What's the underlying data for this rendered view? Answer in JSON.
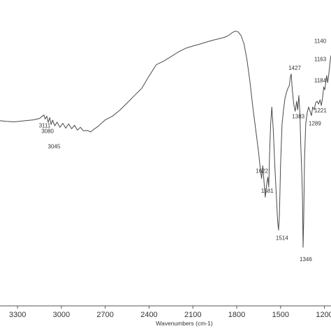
{
  "chart_data": {
    "type": "line",
    "title": "",
    "xlabel": "Wavenumbers (cm-1)",
    "ylabel": "",
    "x_reversed": true,
    "xlim": [
      3420,
      1155
    ],
    "ylim": [
      0,
      100
    ],
    "x_ticks": [
      3300,
      3000,
      2700,
      2400,
      2100,
      1800,
      1500,
      1200
    ],
    "x_tick_labels": [
      "3300",
      "3000",
      "2700",
      "2400",
      "2100",
      "1800",
      "1500",
      "1200"
    ],
    "grid": false,
    "legend": "none",
    "line_color": "#4a4a4a",
    "series": [
      {
        "x": [
          3420,
          3380,
          3320,
          3250,
          3190,
          3150,
          3120,
          3111,
          3100,
          3090,
          3080,
          3070,
          3060,
          3045,
          3030,
          3010,
          2990,
          2970,
          2950,
          2930,
          2910,
          2890,
          2870,
          2850,
          2820,
          2800,
          2780,
          2750,
          2700,
          2650,
          2600,
          2550,
          2500,
          2450,
          2400,
          2350,
          2300,
          2250,
          2200,
          2150,
          2100,
          2050,
          2000,
          1950,
          1900,
          1870,
          1850,
          1830,
          1810,
          1790,
          1770,
          1750,
          1730,
          1710,
          1690,
          1670,
          1650,
          1640,
          1630,
          1622,
          1615,
          1605,
          1595,
          1587,
          1581,
          1575,
          1568,
          1560,
          1550,
          1540,
          1530,
          1520,
          1514,
          1508,
          1500,
          1490,
          1480,
          1470,
          1460,
          1450,
          1440,
          1433,
          1427,
          1420,
          1410,
          1400,
          1390,
          1383,
          1375,
          1368,
          1362,
          1355,
          1350,
          1346,
          1342,
          1336,
          1328,
          1318,
          1308,
          1298,
          1289,
          1280,
          1270,
          1260,
          1250,
          1240,
          1230,
          1221,
          1212,
          1205,
          1198,
          1192,
          1184,
          1178,
          1172,
          1163,
          1158,
          1155
        ],
        "y": [
          63.2,
          63.0,
          62.8,
          63.2,
          63.5,
          64.0,
          65.2,
          63.8,
          64.8,
          62.6,
          64.3,
          61.9,
          63.4,
          61.4,
          62.7,
          60.9,
          62.3,
          60.6,
          62.1,
          60.4,
          61.6,
          59.9,
          60.9,
          59.7,
          59.8,
          59.3,
          60.1,
          61.2,
          63.5,
          64.8,
          66.9,
          69.4,
          72.0,
          74.5,
          78.8,
          82.8,
          84.0,
          85.6,
          87.2,
          88.5,
          89.3,
          90.0,
          90.8,
          91.5,
          92.1,
          92.6,
          93.2,
          94.0,
          94.5,
          94.2,
          92.9,
          90.0,
          84.5,
          77.0,
          68.0,
          60.0,
          52.0,
          47.0,
          43.0,
          47.5,
          43.0,
          36.5,
          41.0,
          43.5,
          40.0,
          52.0,
          62.0,
          68.0,
          60.0,
          48.0,
          38.0,
          28.0,
          25.0,
          30.0,
          48.0,
          62.0,
          67.0,
          71.0,
          73.0,
          74.5,
          75.5,
          78.5,
          79.5,
          74.0,
          69.0,
          66.5,
          70.0,
          67.0,
          72.0,
          66.0,
          55.0,
          45.0,
          36.0,
          19.0,
          28.0,
          50.0,
          62.0,
          66.0,
          68.0,
          66.5,
          65.0,
          68.0,
          67.0,
          69.5,
          70.0,
          69.0,
          70.5,
          68.5,
          71.5,
          75.0,
          74.0,
          76.0,
          79.0,
          76.5,
          78.5,
          83.0,
          85.0,
          86.0
        ]
      }
    ],
    "peak_labels": [
      {
        "text": "3111",
        "x": 3111
      },
      {
        "text": "3080",
        "x": 3080
      },
      {
        "text": "3045",
        "x": 3045
      },
      {
        "text": "1622",
        "x": 1622
      },
      {
        "text": "1581",
        "x": 1581
      },
      {
        "text": "1514",
        "x": 1514
      },
      {
        "text": "1427",
        "x": 1427
      },
      {
        "text": "1383",
        "x": 1383
      },
      {
        "text": "1346",
        "x": 1346
      },
      {
        "text": "1289",
        "x": 1289
      },
      {
        "text": "1221",
        "x": 1221
      },
      {
        "text": "1184",
        "x": 1184
      },
      {
        "text": "1163",
        "x": 1163
      },
      {
        "text": "1140",
        "x": 1140
      }
    ]
  }
}
